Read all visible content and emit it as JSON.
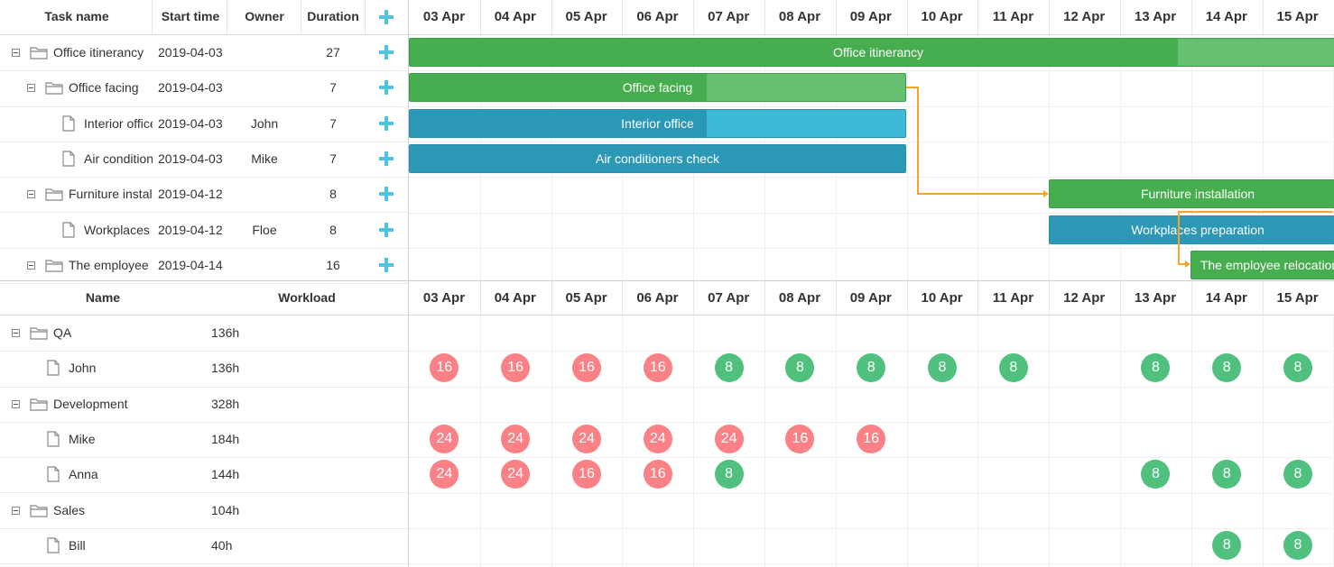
{
  "colors": {
    "green_bar": "#47ae4f",
    "blue_bar": "#2b98b6",
    "overload": "#fa8286",
    "normal": "#4fc07e",
    "link": "#f5a623"
  },
  "gantt": {
    "columns": {
      "task_name": "Task name",
      "start_time": "Start time",
      "owner": "Owner",
      "duration": "Duration"
    },
    "dates": [
      "03 Apr",
      "04 Apr",
      "05 Apr",
      "06 Apr",
      "07 Apr",
      "08 Apr",
      "09 Apr",
      "10 Apr",
      "11 Apr",
      "12 Apr",
      "13 Apr",
      "14 Apr",
      "15 Apr"
    ],
    "tasks": [
      {
        "name": "Office itinerancy",
        "start": "2019-04-03",
        "owner": "",
        "duration": "27",
        "type": "project",
        "level": 0
      },
      {
        "name": "Office facing",
        "start": "2019-04-03",
        "owner": "",
        "duration": "7",
        "type": "project",
        "level": 1
      },
      {
        "name": "Interior office",
        "start": "2019-04-03",
        "owner": "John",
        "duration": "7",
        "type": "task",
        "level": 2
      },
      {
        "name": "Air conditioners check",
        "start": "2019-04-03",
        "owner": "Mike",
        "duration": "7",
        "type": "task",
        "level": 2
      },
      {
        "name": "Furniture installation",
        "start": "2019-04-12",
        "owner": "",
        "duration": "8",
        "type": "project",
        "level": 1
      },
      {
        "name": "Workplaces preparation",
        "start": "2019-04-12",
        "owner": "Floe",
        "duration": "8",
        "type": "task",
        "level": 2
      },
      {
        "name": "The employee relocation",
        "start": "2019-04-14",
        "owner": "",
        "duration": "16",
        "type": "project",
        "level": 1
      }
    ],
    "bars": [
      {
        "label": "Office itinerancy",
        "color": "green",
        "progress": 0.82
      },
      {
        "label": "Office facing",
        "color": "green",
        "progress": 0.6
      },
      {
        "label": "Interior office",
        "color": "blue",
        "progress": 0.6
      },
      {
        "label": "Air conditioners check",
        "color": "blue",
        "progress": 1
      },
      {
        "label": "Furniture installation",
        "color": "green",
        "progress": 1
      },
      {
        "label": "Workplaces preparation",
        "color": "blue",
        "progress": 1
      },
      {
        "label": "The employee relocation",
        "color": "green",
        "progress": 1
      }
    ]
  },
  "resources": {
    "columns": {
      "name": "Name",
      "workload": "Workload"
    },
    "rows": [
      {
        "name": "QA",
        "workload": "136h",
        "type": "group",
        "loads": []
      },
      {
        "name": "John",
        "workload": "136h",
        "type": "person",
        "loads": [
          "16",
          "16",
          "16",
          "16",
          "8",
          "8",
          "8",
          "8",
          "8",
          "",
          "8",
          "8",
          "8"
        ]
      },
      {
        "name": "Development",
        "workload": "328h",
        "type": "group",
        "loads": []
      },
      {
        "name": "Mike",
        "workload": "184h",
        "type": "person",
        "loads": [
          "24",
          "24",
          "24",
          "24",
          "24",
          "16",
          "16",
          "",
          "",
          "",
          "",
          "",
          ""
        ]
      },
      {
        "name": "Anna",
        "workload": "144h",
        "type": "person",
        "loads": [
          "24",
          "24",
          "16",
          "16",
          "8",
          "",
          "",
          "",
          "",
          "",
          "8",
          "8",
          "8"
        ]
      },
      {
        "name": "Sales",
        "workload": "104h",
        "type": "group",
        "loads": []
      },
      {
        "name": "Bill",
        "workload": "40h",
        "type": "person",
        "loads": [
          "",
          "",
          "",
          "",
          "",
          "",
          "",
          "",
          "",
          "",
          "",
          "8",
          "8"
        ]
      }
    ]
  }
}
